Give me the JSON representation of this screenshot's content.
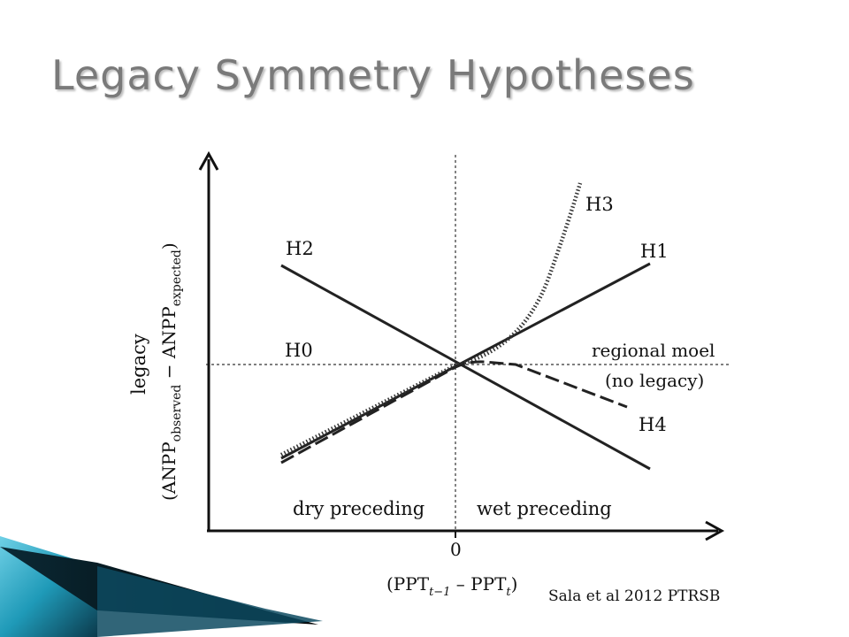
{
  "slide": {
    "title": "Legacy Symmetry Hypotheses",
    "citation": "Sala et al 2012 PTRSB"
  },
  "diagram": {
    "y_axis_label_main": "legacy",
    "y_axis_label_expr": {
      "open": "(ANPP",
      "sub1": "observed",
      "mid": " − ANPP",
      "sub2": "expected",
      "close": ")"
    },
    "x_axis_label_expr": {
      "open": "(PPT",
      "sub1": "t−1",
      "mid": " – PPT",
      "sub2": "t",
      "close": ")"
    },
    "x_origin_tick": "0",
    "region_left": "dry preceding",
    "region_right": "wet preceding",
    "lines": {
      "h0": "H0",
      "h1": "H1",
      "h2": "H2",
      "h3": "H3",
      "h4": "H4"
    },
    "reference_label_1": "regional moel",
    "reference_label_2": "(no legacy)"
  },
  "colors": {
    "ink": "#111111",
    "title": "#7a7a7a",
    "accent_teal": "#1f9ab8",
    "accent_dark": "#0b3a4c"
  }
}
